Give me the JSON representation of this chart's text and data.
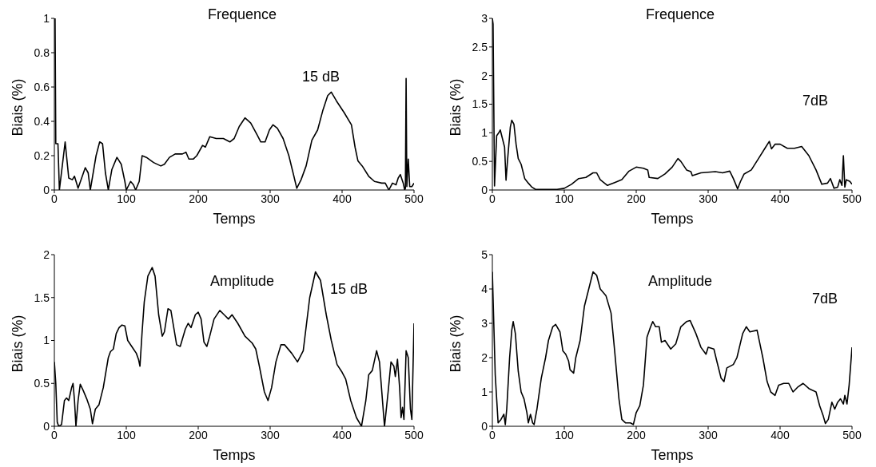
{
  "chart_data": [
    {
      "type": "line",
      "title": "Frequence",
      "xlabel": "Temps",
      "ylabel": "Biais (%)",
      "annotations": [
        "15 dB"
      ],
      "xlim": [
        0,
        500
      ],
      "xticks": [
        0,
        100,
        200,
        300,
        400,
        500
      ],
      "ylim": [
        0,
        1
      ],
      "yticks": [
        0,
        0.2,
        0.4,
        0.6,
        0.8,
        1
      ],
      "grid": false,
      "legend": false,
      "marker": "none",
      "line_style": "solid",
      "series": [
        {
          "color": "#000000",
          "x": [
            0,
            1,
            2,
            5,
            7,
            15,
            20,
            25,
            28,
            33,
            43,
            47,
            50,
            58,
            63,
            67,
            71,
            75,
            80,
            87,
            93,
            98,
            100,
            106,
            110,
            113,
            118,
            122,
            128,
            138,
            148,
            153,
            160,
            168,
            178,
            183,
            187,
            193,
            198,
            206,
            210,
            216,
            225,
            235,
            244,
            250,
            257,
            265,
            273,
            282,
            287,
            293,
            299,
            304,
            310,
            318,
            326,
            333,
            337,
            343,
            350,
            358,
            366,
            373,
            380,
            385,
            392,
            403,
            413,
            418,
            422,
            428,
            437,
            445,
            455,
            460,
            465,
            470,
            475,
            478,
            481,
            485,
            487,
            488,
            489,
            490,
            492,
            494,
            497,
            500
          ],
          "values": [
            1.0,
            1.0,
            0.27,
            0.27,
            0,
            0.28,
            0.07,
            0.06,
            0.08,
            0.01,
            0.13,
            0.1,
            0,
            0.2,
            0.28,
            0.27,
            0.1,
            0,
            0.12,
            0.19,
            0.15,
            0.05,
            0,
            0.05,
            0.03,
            0,
            0.05,
            0.2,
            0.19,
            0.16,
            0.14,
            0.15,
            0.19,
            0.21,
            0.21,
            0.22,
            0.18,
            0.18,
            0.2,
            0.26,
            0.25,
            0.31,
            0.3,
            0.3,
            0.28,
            0.3,
            0.37,
            0.42,
            0.39,
            0.32,
            0.28,
            0.28,
            0.35,
            0.38,
            0.36,
            0.3,
            0.2,
            0.08,
            0.01,
            0.06,
            0.14,
            0.29,
            0.35,
            0.46,
            0.55,
            0.57,
            0.52,
            0.45,
            0.38,
            0.25,
            0.17,
            0.14,
            0.08,
            0.05,
            0.04,
            0.04,
            0,
            0.04,
            0.03,
            0.07,
            0.09,
            0.04,
            0,
            0.01,
            0.65,
            0.02,
            0.18,
            0.02,
            0.02,
            0.04
          ]
        }
      ]
    },
    {
      "type": "line",
      "title": "Frequence",
      "xlabel": "Temps",
      "ylabel": "Biais (%)",
      "annotations": [
        "7dB"
      ],
      "xlim": [
        0,
        500
      ],
      "xticks": [
        0,
        100,
        200,
        300,
        400,
        500
      ],
      "ylim": [
        0,
        3
      ],
      "yticks": [
        0,
        0.5,
        1,
        1.5,
        2,
        2.5,
        3
      ],
      "grid": false,
      "legend": false,
      "marker": "none",
      "line_style": "solid",
      "series": [
        {
          "color": "#000000",
          "x": [
            0,
            1,
            3,
            6,
            9,
            11,
            14,
            17,
            19,
            21,
            25,
            27,
            30,
            33,
            36,
            40,
            45,
            50,
            55,
            60,
            70,
            90,
            100,
            110,
            120,
            130,
            140,
            145,
            150,
            160,
            170,
            180,
            190,
            200,
            210,
            216,
            218,
            230,
            240,
            250,
            258,
            262,
            270,
            276,
            278,
            290,
            310,
            320,
            330,
            335,
            341,
            345,
            350,
            360,
            370,
            380,
            385,
            388,
            393,
            400,
            410,
            420,
            430,
            440,
            450,
            458,
            466,
            470,
            475,
            480,
            483,
            486,
            488,
            490,
            492,
            497,
            500
          ],
          "values": [
            3.0,
            2.9,
            0.07,
            0.95,
            1.0,
            1.05,
            0.9,
            0.75,
            0.17,
            0.5,
            1.1,
            1.22,
            1.15,
            0.8,
            0.55,
            0.45,
            0.2,
            0.12,
            0.05,
            0.01,
            0.01,
            0.01,
            0.03,
            0.1,
            0.2,
            0.22,
            0.3,
            0.3,
            0.18,
            0.08,
            0.13,
            0.18,
            0.33,
            0.4,
            0.38,
            0.35,
            0.22,
            0.2,
            0.28,
            0.4,
            0.55,
            0.5,
            0.35,
            0.32,
            0.25,
            0.3,
            0.32,
            0.3,
            0.33,
            0.2,
            0.02,
            0.15,
            0.28,
            0.35,
            0.55,
            0.75,
            0.85,
            0.72,
            0.8,
            0.8,
            0.73,
            0.73,
            0.76,
            0.6,
            0.35,
            0.1,
            0.12,
            0.2,
            0.03,
            0.05,
            0.18,
            0.08,
            0.6,
            0.05,
            0.18,
            0.15,
            0.1
          ]
        }
      ]
    },
    {
      "type": "line",
      "title": "Amplitude",
      "xlabel": "Temps",
      "ylabel": "Biais (%)",
      "annotations": [
        "15 dB"
      ],
      "xlim": [
        0,
        500
      ],
      "xticks": [
        0,
        100,
        200,
        300,
        400,
        500
      ],
      "ylim": [
        0,
        2
      ],
      "yticks": [
        0,
        0.5,
        1,
        1.5,
        2
      ],
      "grid": false,
      "legend": false,
      "marker": "none",
      "line_style": "solid",
      "series": [
        {
          "color": "#000000",
          "x": [
            0,
            2,
            4,
            6,
            10,
            14,
            17,
            20,
            24,
            26,
            28,
            30,
            33,
            36,
            40,
            45,
            50,
            53,
            57,
            62,
            68,
            75,
            78,
            82,
            86,
            90,
            94,
            98,
            102,
            110,
            114,
            117,
            119,
            122,
            125,
            130,
            136,
            140,
            145,
            150,
            153,
            158,
            162,
            170,
            175,
            182,
            186,
            190,
            196,
            200,
            204,
            208,
            212,
            216,
            222,
            230,
            236,
            242,
            247,
            255,
            265,
            275,
            280,
            285,
            292,
            297,
            302,
            308,
            315,
            320,
            330,
            338,
            346,
            355,
            363,
            370,
            378,
            385,
            393,
            400,
            405,
            412,
            420,
            427,
            433,
            437,
            442,
            448,
            452,
            458,
            459,
            464,
            468,
            472,
            474,
            477,
            480,
            482,
            484,
            486,
            489,
            492,
            495,
            497,
            500
          ],
          "values": [
            0.75,
            0.5,
            0.05,
            0,
            0.02,
            0.3,
            0.33,
            0.3,
            0.45,
            0.5,
            0.3,
            0,
            0.3,
            0.49,
            0.42,
            0.32,
            0.2,
            0.03,
            0.2,
            0.25,
            0.45,
            0.8,
            0.87,
            0.9,
            1.08,
            1.15,
            1.18,
            1.17,
            1.0,
            0.9,
            0.85,
            0.78,
            0.7,
            1.1,
            1.45,
            1.75,
            1.85,
            1.75,
            1.3,
            1.05,
            1.1,
            1.37,
            1.35,
            0.95,
            0.93,
            1.13,
            1.2,
            1.15,
            1.3,
            1.33,
            1.25,
            0.98,
            0.93,
            1.05,
            1.25,
            1.35,
            1.3,
            1.25,
            1.3,
            1.2,
            1.05,
            0.97,
            0.9,
            0.7,
            0.4,
            0.3,
            0.45,
            0.75,
            0.95,
            0.95,
            0.85,
            0.75,
            0.88,
            1.5,
            1.8,
            1.7,
            1.3,
            1.0,
            0.72,
            0.63,
            0.55,
            0.3,
            0.1,
            0,
            0.3,
            0.6,
            0.65,
            0.88,
            0.75,
            0.1,
            0,
            0.4,
            0.75,
            0.7,
            0.58,
            0.78,
            0.45,
            0.1,
            0.22,
            0.08,
            0.88,
            0.8,
            0.2,
            0.08,
            1.2
          ]
        }
      ]
    },
    {
      "type": "line",
      "title": "Amplitude",
      "xlabel": "Temps",
      "ylabel": "Biais (%)",
      "annotations": [
        "7dB"
      ],
      "xlim": [
        0,
        500
      ],
      "xticks": [
        0,
        100,
        200,
        300,
        400,
        500
      ],
      "ylim": [
        0,
        5
      ],
      "yticks": [
        0,
        1,
        2,
        3,
        4,
        5
      ],
      "grid": false,
      "legend": false,
      "marker": "none",
      "line_style": "solid",
      "series": [
        {
          "color": "#000000",
          "x": [
            0,
            2,
            4,
            8,
            12,
            16,
            18,
            20,
            24,
            27,
            29,
            32,
            36,
            40,
            44,
            48,
            50,
            53,
            56,
            58,
            62,
            68,
            74,
            78,
            84,
            88,
            94,
            98,
            102,
            106,
            108,
            113,
            116,
            122,
            128,
            134,
            140,
            145,
            150,
            158,
            165,
            170,
            176,
            180,
            185,
            192,
            196,
            200,
            205,
            210,
            215,
            220,
            223,
            227,
            232,
            235,
            240,
            248,
            255,
            262,
            270,
            275,
            283,
            290,
            297,
            300,
            308,
            312,
            318,
            322,
            326,
            335,
            340,
            348,
            353,
            358,
            368,
            376,
            382,
            387,
            393,
            398,
            405,
            412,
            418,
            425,
            432,
            440,
            450,
            455,
            460,
            463,
            467,
            472,
            476,
            480,
            484,
            488,
            490,
            493,
            496,
            500
          ],
          "values": [
            4.5,
            3.0,
            1.5,
            0.1,
            0.2,
            0.35,
            0.05,
            0.5,
            2.0,
            2.8,
            3.05,
            2.7,
            1.6,
            1.0,
            0.8,
            0.4,
            0.1,
            0.35,
            0.1,
            0.05,
            0.5,
            1.4,
            2.0,
            2.5,
            2.9,
            2.97,
            2.75,
            2.2,
            2.1,
            1.9,
            1.65,
            1.55,
            2.0,
            2.5,
            3.5,
            4.0,
            4.5,
            4.4,
            4.0,
            3.8,
            3.3,
            2.2,
            0.8,
            0.2,
            0.1,
            0.1,
            0.05,
            0.4,
            0.6,
            1.2,
            2.6,
            2.9,
            3.05,
            2.9,
            2.9,
            2.45,
            2.5,
            2.25,
            2.4,
            2.9,
            3.05,
            3.08,
            2.7,
            2.3,
            2.1,
            2.3,
            2.25,
            1.9,
            1.4,
            1.3,
            1.7,
            1.8,
            2.0,
            2.7,
            2.9,
            2.75,
            2.8,
            2.0,
            1.3,
            1.0,
            0.9,
            1.2,
            1.25,
            1.25,
            1.0,
            1.15,
            1.25,
            1.1,
            1.0,
            0.6,
            0.3,
            0.08,
            0.2,
            0.7,
            0.5,
            0.7,
            0.8,
            0.65,
            0.9,
            0.65,
            1.2,
            2.3
          ]
        }
      ]
    }
  ]
}
